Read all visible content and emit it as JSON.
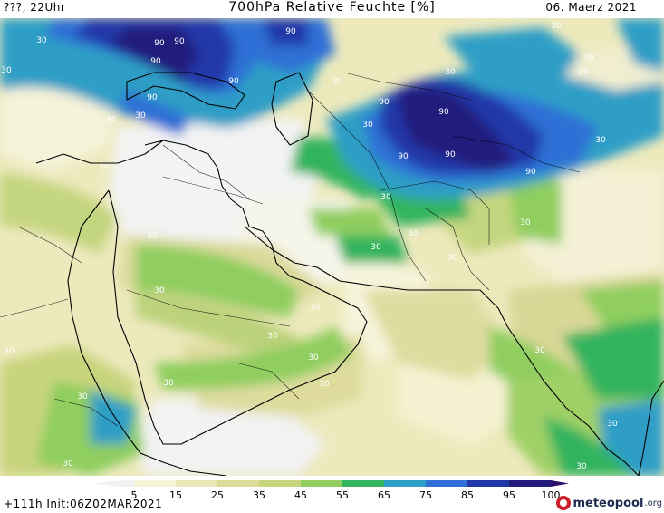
{
  "header": {
    "left": "???, 22Uhr",
    "title": "700hPa Relative Feuchte [%]",
    "date": "06. Maerz 2021"
  },
  "footer": {
    "run_info": "+111h  Init:06Z02MAR2021",
    "logo": "meteopool",
    "logo_tld": ".org"
  },
  "legend": {
    "ticks": [
      "5",
      "15",
      "25",
      "35",
      "45",
      "55",
      "65",
      "75",
      "85",
      "95",
      "100"
    ],
    "colors": [
      "#f1f1f1",
      "#f7f3d8",
      "#ece9b8",
      "#dbdc9a",
      "#c8d47d",
      "#8fce5f",
      "#33b45e",
      "#2f9ec6",
      "#2f6fd6",
      "#2338a8",
      "#241b7d",
      "#2c106a"
    ]
  },
  "contour_labels": [
    "30",
    "90",
    "90",
    "90",
    "90",
    "90",
    "30",
    "30",
    "30",
    "30",
    "90",
    "90",
    "90",
    "90",
    "90",
    "90",
    "30",
    "30",
    "30",
    "30",
    "30",
    "30",
    "30",
    "30",
    "30",
    "30",
    "30",
    "30",
    "30",
    "30",
    "30",
    "30",
    "30",
    "30",
    "30",
    "30",
    "30",
    "30",
    "30",
    "30",
    "30",
    "30"
  ]
}
